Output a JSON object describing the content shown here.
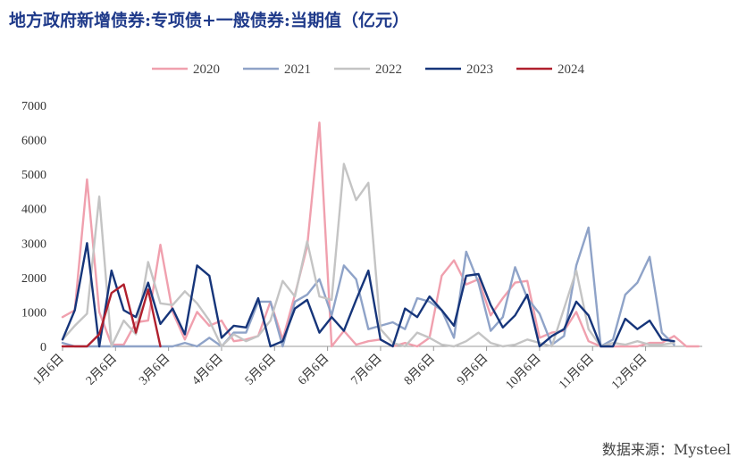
{
  "title": "地方政府新增债券:专项债+一般债券:当期值（亿元）",
  "source": "数据来源：Mysteel",
  "chart_data": {
    "type": "line",
    "title": "地方政府新增债券:专项债+一般债券:当期值（亿元）",
    "xlabel": "",
    "ylabel": "",
    "ylim": [
      0,
      7000
    ],
    "yticks": [
      0,
      1000,
      2000,
      3000,
      4000,
      5000,
      6000,
      7000
    ],
    "xticks": [
      "1月6日",
      "2月6日",
      "3月6日",
      "4月6日",
      "5月6日",
      "6月6日",
      "7月6日",
      "8月6日",
      "9月6日",
      "10月6日",
      "11月6日",
      "12月6日"
    ],
    "x_unit": "week",
    "legend_position": "top",
    "grid": false,
    "series": [
      {
        "name": "2020",
        "color": "#f0a0ae",
        "x": [
          0,
          1,
          2,
          3,
          4,
          5,
          6,
          7,
          8,
          9,
          10,
          11,
          12,
          13,
          14,
          15,
          16,
          17,
          18,
          19,
          20,
          21,
          22,
          23,
          24,
          25,
          26,
          27,
          28,
          29,
          30,
          31,
          32,
          33,
          34,
          35,
          36,
          37,
          38,
          39,
          40,
          41,
          42,
          43,
          44,
          45,
          46,
          47,
          48,
          49,
          50,
          51,
          52
        ],
        "values": [
          850,
          1050,
          4850,
          1000,
          50,
          50,
          700,
          750,
          2950,
          1000,
          200,
          1000,
          600,
          750,
          150,
          200,
          300,
          1300,
          200,
          1500,
          2900,
          6500,
          0,
          450,
          50,
          150,
          200,
          0,
          100,
          0,
          250,
          2050,
          2500,
          1800,
          1950,
          900,
          1400,
          1850,
          1900,
          250,
          400,
          450,
          1000,
          150,
          0,
          0,
          0,
          0,
          100,
          100,
          300,
          0,
          0
        ]
      },
      {
        "name": "2021",
        "color": "#8fa3c8",
        "x": [
          0,
          1,
          2,
          3,
          4,
          5,
          6,
          7,
          8,
          9,
          10,
          11,
          12,
          13,
          14,
          15,
          16,
          17,
          18,
          19,
          20,
          21,
          22,
          23,
          24,
          25,
          26,
          27,
          28,
          29,
          30,
          31,
          32,
          33,
          34,
          35,
          36,
          37,
          38,
          39,
          40,
          41,
          42,
          43,
          44,
          45,
          46,
          47,
          48,
          49,
          50
        ],
        "values": [
          100,
          0,
          0,
          0,
          0,
          0,
          0,
          0,
          0,
          0,
          100,
          0,
          250,
          0,
          400,
          400,
          1300,
          1300,
          0,
          1300,
          1500,
          1950,
          900,
          2350,
          1950,
          500,
          600,
          700,
          500,
          1400,
          1300,
          1050,
          250,
          2750,
          1850,
          450,
          850,
          2300,
          1400,
          950,
          50,
          300,
          2350,
          3450,
          0,
          200,
          1500,
          1850,
          2600,
          400,
          50
        ]
      },
      {
        "name": "2022",
        "color": "#c4c4c4",
        "x": [
          0,
          1,
          2,
          3,
          4,
          5,
          6,
          7,
          8,
          9,
          10,
          11,
          12,
          13,
          14,
          15,
          16,
          17,
          18,
          19,
          20,
          21,
          22,
          23,
          24,
          25,
          26,
          27,
          28,
          29,
          30,
          31,
          32,
          33,
          34,
          35,
          36,
          37,
          38,
          39,
          40,
          41,
          42,
          43,
          44,
          45,
          46,
          47,
          48,
          49,
          50
        ],
        "values": [
          200,
          600,
          950,
          4350,
          0,
          750,
          350,
          2450,
          1250,
          1200,
          1600,
          1250,
          750,
          0,
          350,
          150,
          300,
          750,
          1900,
          1450,
          3050,
          1450,
          1350,
          5300,
          4250,
          4750,
          500,
          100,
          0,
          400,
          250,
          50,
          0,
          150,
          400,
          100,
          0,
          50,
          200,
          100,
          0,
          1100,
          2200,
          500,
          0,
          100,
          50,
          150,
          50,
          50,
          100
        ]
      },
      {
        "name": "2023",
        "color": "#16357a",
        "x": [
          0,
          1,
          2,
          3,
          4,
          5,
          6,
          7,
          8,
          9,
          10,
          11,
          12,
          13,
          14,
          15,
          16,
          17,
          18,
          19,
          20,
          21,
          22,
          23,
          24,
          25,
          26,
          27,
          28,
          29,
          30,
          31,
          32,
          33,
          34,
          35,
          36,
          37,
          38,
          39,
          40,
          41,
          42,
          43,
          44,
          45,
          46,
          47,
          48,
          49,
          50
        ],
        "values": [
          200,
          1050,
          3000,
          0,
          2200,
          1050,
          850,
          1850,
          650,
          1100,
          350,
          2350,
          2050,
          250,
          600,
          550,
          1400,
          0,
          150,
          1100,
          1350,
          400,
          850,
          450,
          1350,
          2200,
          200,
          0,
          1100,
          850,
          1450,
          1050,
          600,
          2050,
          2100,
          1200,
          550,
          900,
          1500,
          0,
          300,
          500,
          1300,
          900,
          0,
          0,
          800,
          500,
          750,
          200,
          150
        ]
      },
      {
        "name": "2024",
        "color": "#b0202e",
        "x": [
          0,
          1,
          2,
          3,
          4,
          5,
          6,
          7,
          8
        ],
        "values": [
          0,
          0,
          0,
          350,
          1550,
          1800,
          400,
          1650,
          0
        ]
      }
    ]
  }
}
